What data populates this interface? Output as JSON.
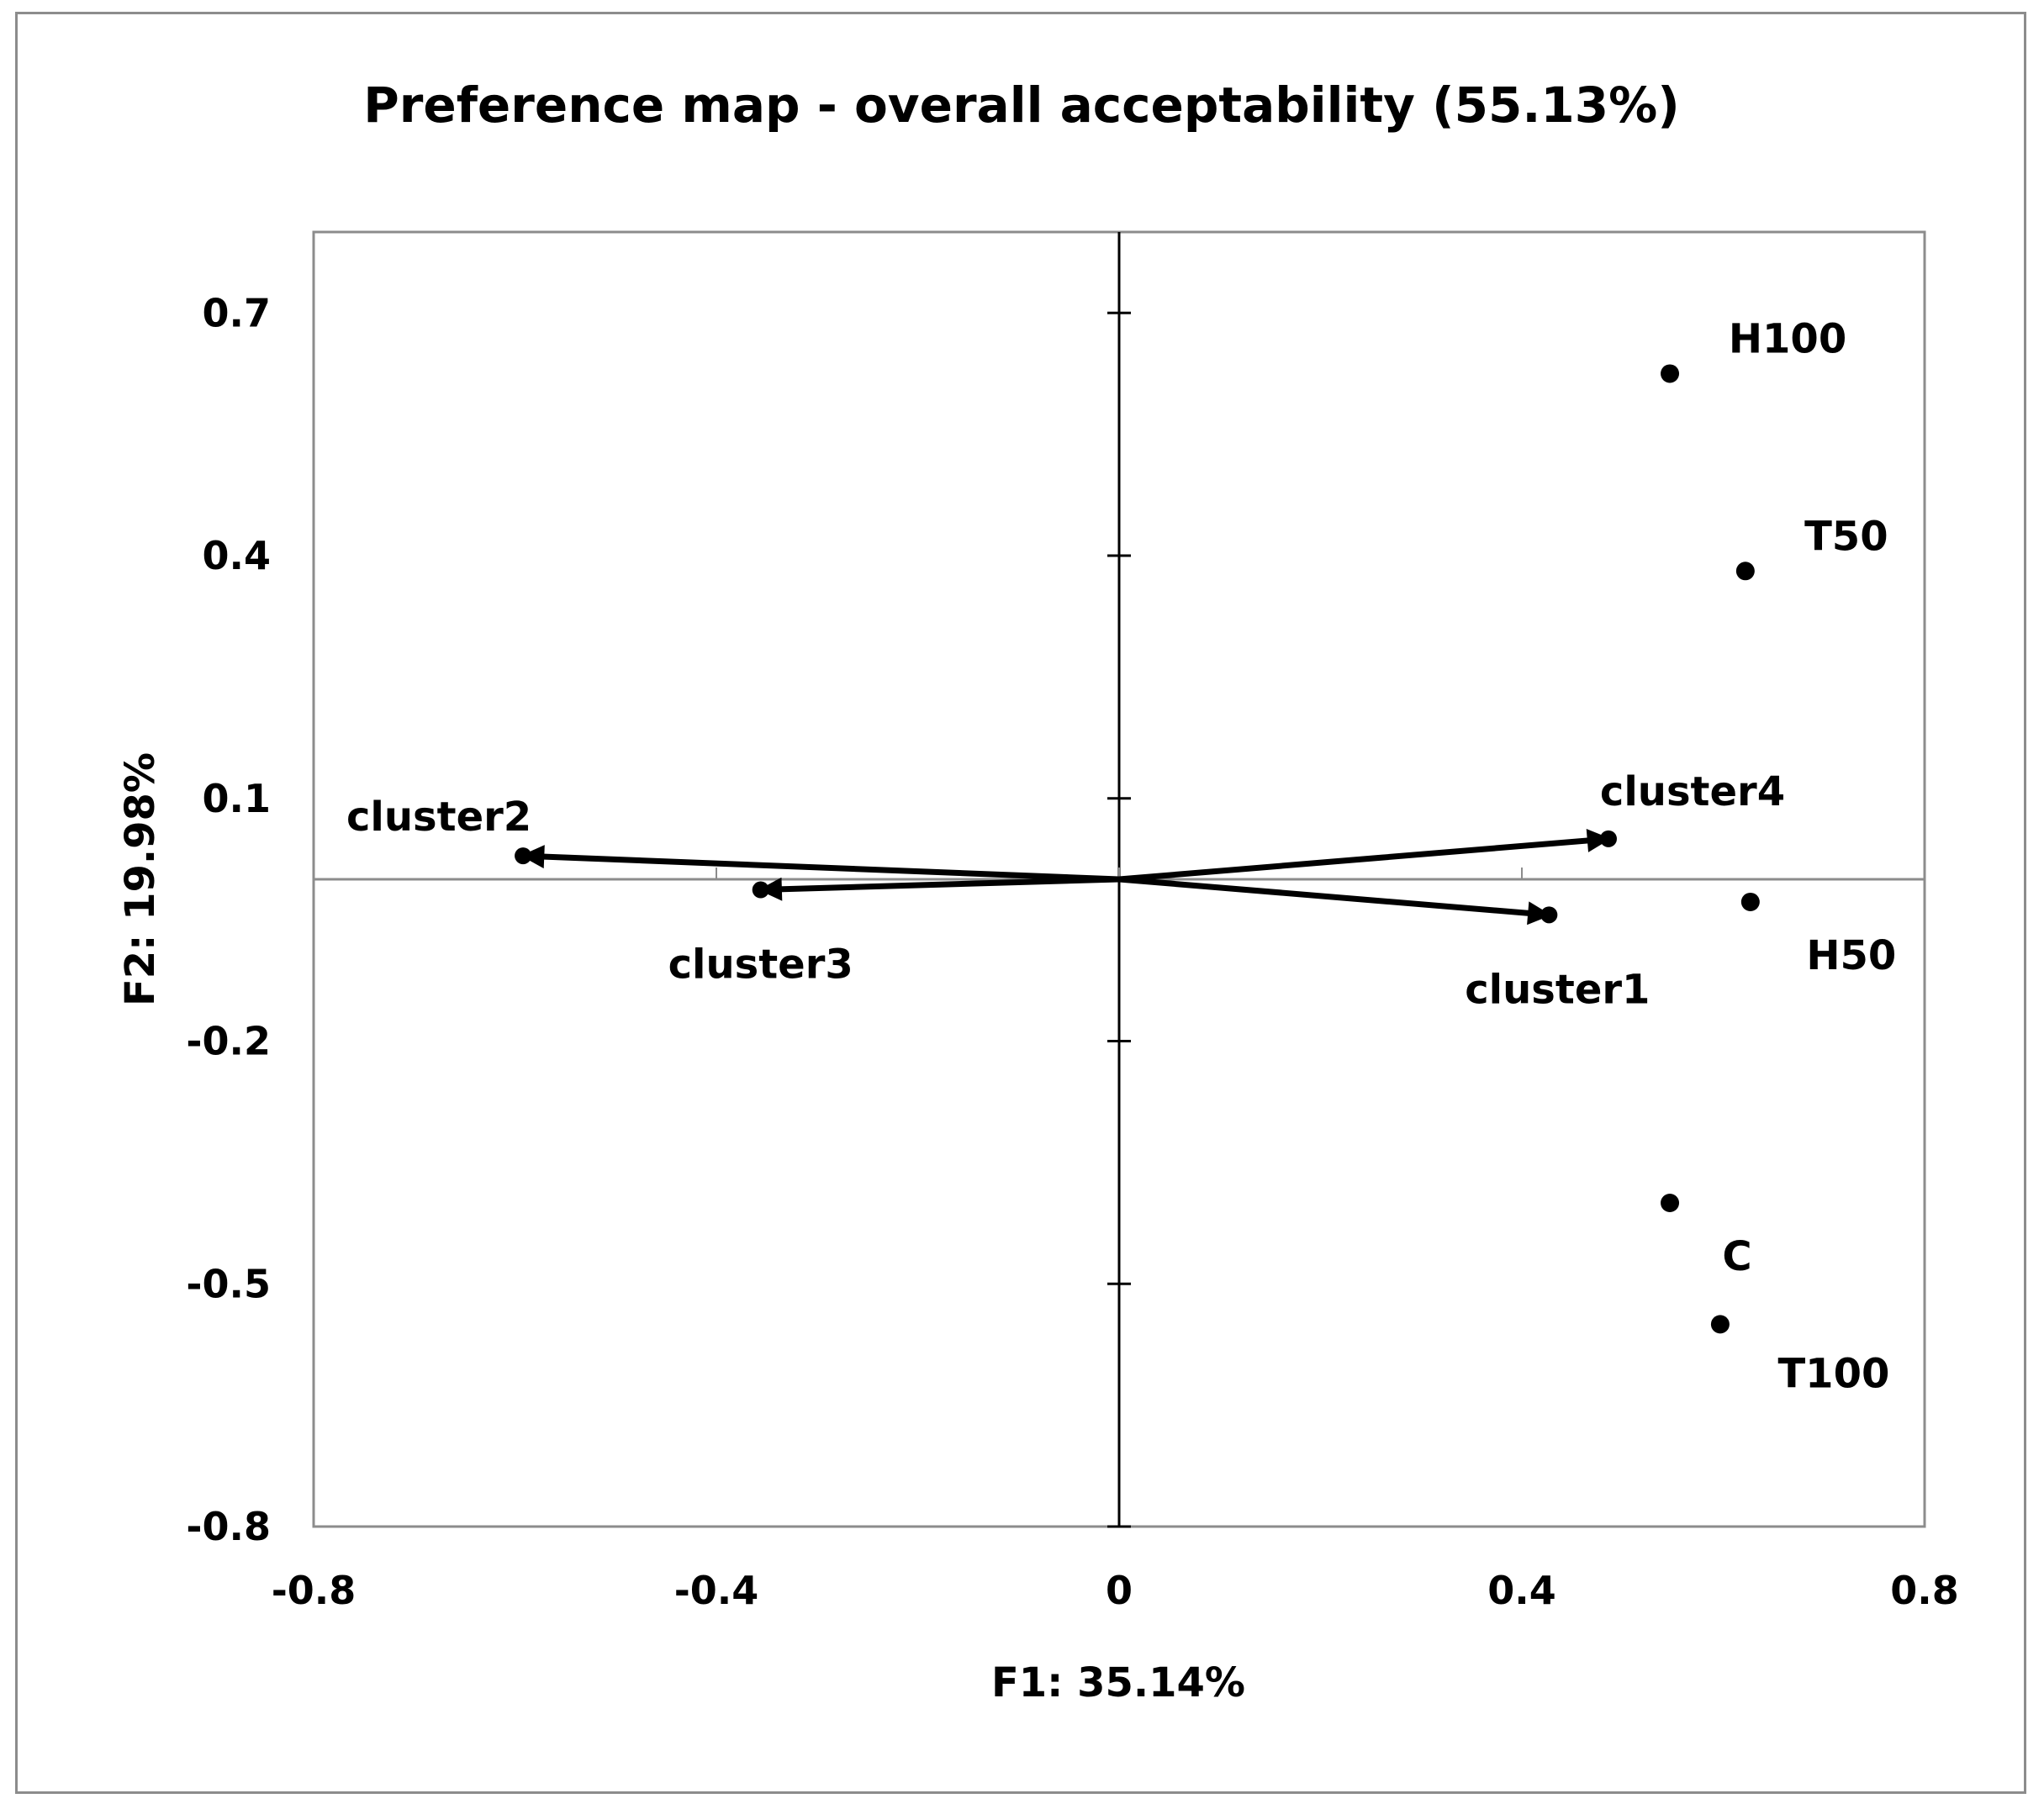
{
  "chart_data": {
    "type": "scatter",
    "title": "Preference map - overall acceptability (55.13%)",
    "xlabel": "F1: 35.14%",
    "ylabel": "F2: 19.98%",
    "xlim": [
      -0.8,
      0.8
    ],
    "ylim": [
      -0.8,
      0.8
    ],
    "x_ticks": [
      -0.8,
      -0.4,
      0,
      0.4,
      0.8
    ],
    "y_ticks": [
      0.7,
      0.4,
      0.1,
      -0.2,
      -0.5,
      -0.8
    ],
    "x_tick_labels": [
      "-0.8",
      "-0.4",
      "0",
      "0.4",
      "0.8"
    ],
    "y_tick_labels": [
      "0.7",
      "0.4",
      "0.1",
      "-0.2",
      "-0.5",
      "-0.8"
    ],
    "grid": false,
    "colors": {
      "marks": "#000000",
      "frame": "#8c8c8c",
      "zero_line": "#8c8c8c",
      "axis": "#000000"
    },
    "products": [
      {
        "label": "H100",
        "x": 0.547,
        "y": 0.625
      },
      {
        "label": "T50",
        "x": 0.622,
        "y": 0.381
      },
      {
        "label": "H50",
        "x": 0.627,
        "y": -0.028
      },
      {
        "label": "C",
        "x": 0.547,
        "y": -0.4
      },
      {
        "label": "T100",
        "x": 0.597,
        "y": -0.55
      }
    ],
    "vectors": [
      {
        "label": "cluster1",
        "x": 0.427,
        "y": -0.044
      },
      {
        "label": "cluster2",
        "x": -0.592,
        "y": 0.029
      },
      {
        "label": "cluster3",
        "x": -0.356,
        "y": -0.013
      },
      {
        "label": "cluster4",
        "x": 0.486,
        "y": 0.05
      }
    ]
  }
}
